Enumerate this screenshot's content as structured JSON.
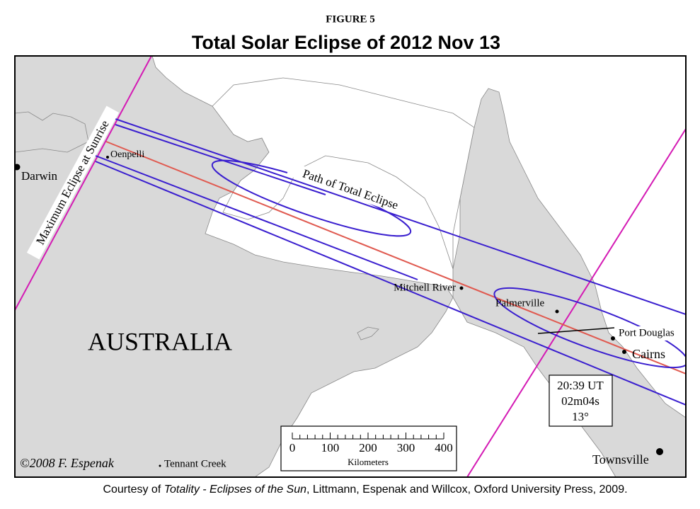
{
  "header": {
    "figure": "FIGURE 5",
    "title": "Total Solar Eclipse of  2012 Nov 13"
  },
  "map": {
    "region": "AUSTRALIA",
    "path_label": "Path of Total Eclipse",
    "sunrise_label": "Maximum Eclipse at Sunrise",
    "places": [
      "Darwin",
      "Oenpelli",
      "Mitchell River",
      "Palmerville",
      "Port Douglas",
      "Cairns",
      "Townsville",
      "Tennant Creek"
    ],
    "info": [
      "20:39 UT",
      "02m04s",
      "13°"
    ],
    "scale": {
      "ticks": [
        "0",
        "100",
        "200",
        "300",
        "400"
      ],
      "unit": "Kilometers"
    },
    "credit": "©2008 F. Espenak"
  },
  "footer": {
    "prefix": "Courtesy of ",
    "italic": "Totality - Eclipses of the Sun",
    "suffix": ", Littmann, Espenak and Willcox, Oxford University Press, 2009."
  }
}
